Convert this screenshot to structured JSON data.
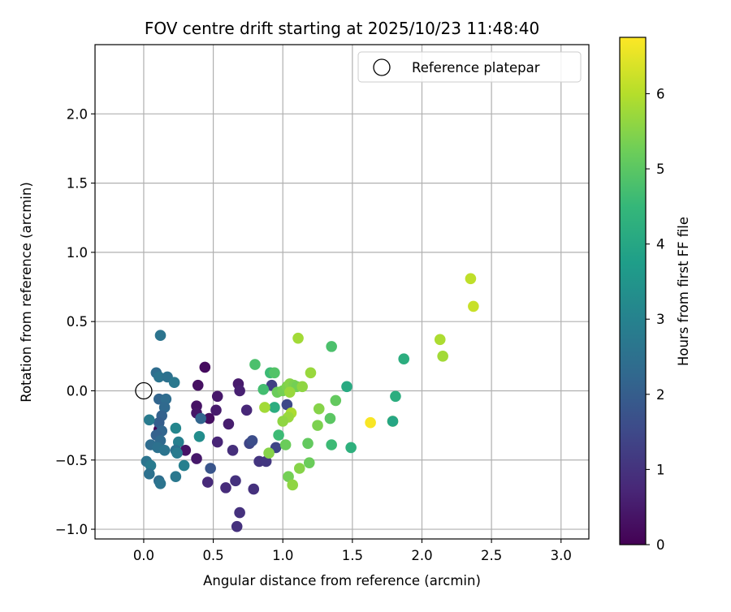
{
  "chart_data": {
    "type": "scatter",
    "title": "FOV centre drift starting at 2025/10/23 11:48:40",
    "xlabel": "Angular distance from reference (arcmin)",
    "ylabel": "Rotation from reference (arcmin)",
    "xlim": [
      -0.35,
      3.2
    ],
    "ylim": [
      -1.07,
      2.5
    ],
    "xticks": [
      0.0,
      0.5,
      1.0,
      1.5,
      2.0,
      2.5,
      3.0
    ],
    "xtick_labels": [
      "0.0",
      "0.5",
      "1.0",
      "1.5",
      "2.0",
      "2.5",
      "3.0"
    ],
    "yticks": [
      -1.0,
      -0.5,
      0.0,
      0.5,
      1.0,
      1.5,
      2.0
    ],
    "ytick_labels": [
      "−1.0",
      "−0.5",
      "0.0",
      "0.5",
      "1.0",
      "1.5",
      "2.0"
    ],
    "grid": true,
    "legend": {
      "position": "top-right",
      "label": "Reference platepar"
    },
    "reference_point": {
      "x": 0.0,
      "y": 0.0
    },
    "colorbar": {
      "label": "Hours from first FF file",
      "range": [
        0,
        6.75
      ],
      "ticks": [
        0,
        1,
        2,
        3,
        4,
        5,
        6
      ],
      "tick_labels": [
        "0",
        "1",
        "2",
        "3",
        "4",
        "5",
        "6"
      ],
      "colormap": [
        "#440154",
        "#482878",
        "#3e4989",
        "#31688e",
        "#26828e",
        "#1f9e89",
        "#35b779",
        "#6ece58",
        "#b5de2b",
        "#fde725"
      ]
    },
    "points": [
      {
        "x": 0.11,
        "y": -0.28,
        "t": 0.05
      },
      {
        "x": 0.44,
        "y": 0.17,
        "t": 0.2
      },
      {
        "x": 0.39,
        "y": 0.04,
        "t": 0.3
      },
      {
        "x": 0.47,
        "y": -0.2,
        "t": 0.25
      },
      {
        "x": 0.38,
        "y": -0.11,
        "t": 0.35
      },
      {
        "x": 0.38,
        "y": -0.16,
        "t": 0.4
      },
      {
        "x": 0.53,
        "y": -0.04,
        "t": 0.45
      },
      {
        "x": 0.52,
        "y": -0.14,
        "t": 0.5
      },
      {
        "x": 0.68,
        "y": 0.05,
        "t": 0.5
      },
      {
        "x": 0.69,
        "y": 0.0,
        "t": 0.6
      },
      {
        "x": 0.61,
        "y": -0.24,
        "t": 0.55
      },
      {
        "x": 0.38,
        "y": -0.49,
        "t": 0.45
      },
      {
        "x": 0.3,
        "y": -0.43,
        "t": 0.35
      },
      {
        "x": 0.53,
        "y": -0.37,
        "t": 0.7
      },
      {
        "x": 0.74,
        "y": -0.14,
        "t": 0.75
      },
      {
        "x": 0.64,
        "y": -0.43,
        "t": 0.9
      },
      {
        "x": 0.46,
        "y": -0.66,
        "t": 0.8
      },
      {
        "x": 0.59,
        "y": -0.7,
        "t": 0.85
      },
      {
        "x": 0.66,
        "y": -0.65,
        "t": 0.95
      },
      {
        "x": 0.79,
        "y": -0.71,
        "t": 0.95
      },
      {
        "x": 0.69,
        "y": -0.88,
        "t": 0.95
      },
      {
        "x": 0.67,
        "y": -0.98,
        "t": 0.95
      },
      {
        "x": 0.83,
        "y": -0.51,
        "t": 1.05
      },
      {
        "x": 0.88,
        "y": -0.51,
        "t": 1.1
      },
      {
        "x": 0.76,
        "y": -0.38,
        "t": 1.4
      },
      {
        "x": 0.78,
        "y": -0.36,
        "t": 1.6
      },
      {
        "x": 0.95,
        "y": -0.41,
        "t": 1.4
      },
      {
        "x": 0.92,
        "y": 0.04,
        "t": 1.3
      },
      {
        "x": 1.03,
        "y": -0.1,
        "t": 1.5
      },
      {
        "x": 0.48,
        "y": -0.56,
        "t": 1.8
      },
      {
        "x": 0.41,
        "y": -0.2,
        "t": 2.2
      },
      {
        "x": 0.12,
        "y": 0.4,
        "t": 2.6
      },
      {
        "x": 0.09,
        "y": 0.13,
        "t": 2.4
      },
      {
        "x": 0.11,
        "y": 0.1,
        "t": 2.6
      },
      {
        "x": 0.17,
        "y": 0.1,
        "t": 2.5
      },
      {
        "x": 0.22,
        "y": 0.06,
        "t": 2.7
      },
      {
        "x": 0.11,
        "y": -0.06,
        "t": 2.2
      },
      {
        "x": 0.16,
        "y": -0.06,
        "t": 2.4
      },
      {
        "x": 0.15,
        "y": -0.12,
        "t": 2.3
      },
      {
        "x": 0.13,
        "y": -0.18,
        "t": 2.1
      },
      {
        "x": 0.11,
        "y": -0.23,
        "t": 2.0
      },
      {
        "x": 0.04,
        "y": -0.21,
        "t": 2.8
      },
      {
        "x": 0.13,
        "y": -0.29,
        "t": 2.2
      },
      {
        "x": 0.09,
        "y": -0.32,
        "t": 2.1
      },
      {
        "x": 0.12,
        "y": -0.36,
        "t": 2.3
      },
      {
        "x": 0.05,
        "y": -0.39,
        "t": 2.4
      },
      {
        "x": 0.1,
        "y": -0.41,
        "t": 2.5
      },
      {
        "x": 0.15,
        "y": -0.43,
        "t": 2.6
      },
      {
        "x": 0.23,
        "y": -0.27,
        "t": 3.1
      },
      {
        "x": 0.25,
        "y": -0.37,
        "t": 2.9
      },
      {
        "x": 0.23,
        "y": -0.43,
        "t": 2.5
      },
      {
        "x": 0.24,
        "y": -0.45,
        "t": 2.8
      },
      {
        "x": 0.02,
        "y": -0.51,
        "t": 2.6
      },
      {
        "x": 0.05,
        "y": -0.54,
        "t": 2.8
      },
      {
        "x": 0.04,
        "y": -0.6,
        "t": 2.5
      },
      {
        "x": 0.11,
        "y": -0.65,
        "t": 2.4
      },
      {
        "x": 0.12,
        "y": -0.67,
        "t": 2.6
      },
      {
        "x": 0.23,
        "y": -0.62,
        "t": 2.7
      },
      {
        "x": 0.29,
        "y": -0.54,
        "t": 2.9
      },
      {
        "x": 0.4,
        "y": -0.33,
        "t": 3.3
      },
      {
        "x": 0.94,
        "y": -0.12,
        "t": 4.2
      },
      {
        "x": 0.97,
        "y": -0.32,
        "t": 4.6
      },
      {
        "x": 0.8,
        "y": 0.19,
        "t": 4.8
      },
      {
        "x": 0.86,
        "y": 0.01,
        "t": 4.7
      },
      {
        "x": 0.91,
        "y": 0.13,
        "t": 4.6
      },
      {
        "x": 0.94,
        "y": 0.13,
        "t": 4.9
      },
      {
        "x": 0.96,
        "y": -0.01,
        "t": 5.2
      },
      {
        "x": 1.0,
        "y": 0.0,
        "t": 5.3
      },
      {
        "x": 1.03,
        "y": 0.03,
        "t": 5.4
      },
      {
        "x": 1.05,
        "y": 0.05,
        "t": 5.5
      },
      {
        "x": 1.08,
        "y": 0.04,
        "t": 5.4
      },
      {
        "x": 1.1,
        "y": 0.03,
        "t": 5.3
      },
      {
        "x": 1.14,
        "y": 0.03,
        "t": 5.6
      },
      {
        "x": 1.05,
        "y": -0.01,
        "t": 5.7
      },
      {
        "x": 1.06,
        "y": -0.16,
        "t": 5.9
      },
      {
        "x": 1.04,
        "y": -0.19,
        "t": 5.7
      },
      {
        "x": 1.0,
        "y": -0.22,
        "t": 5.6
      },
      {
        "x": 0.87,
        "y": -0.12,
        "t": 5.8
      },
      {
        "x": 0.9,
        "y": -0.45,
        "t": 5.5
      },
      {
        "x": 1.02,
        "y": -0.39,
        "t": 5.2
      },
      {
        "x": 1.11,
        "y": 0.38,
        "t": 5.8
      },
      {
        "x": 1.2,
        "y": 0.13,
        "t": 5.7
      },
      {
        "x": 1.26,
        "y": -0.13,
        "t": 5.5
      },
      {
        "x": 1.25,
        "y": -0.25,
        "t": 5.4
      },
      {
        "x": 1.18,
        "y": -0.38,
        "t": 5.1
      },
      {
        "x": 1.19,
        "y": -0.52,
        "t": 5.2
      },
      {
        "x": 1.12,
        "y": -0.56,
        "t": 5.5
      },
      {
        "x": 1.04,
        "y": -0.62,
        "t": 5.3
      },
      {
        "x": 1.07,
        "y": -0.68,
        "t": 5.6
      },
      {
        "x": 1.34,
        "y": -0.2,
        "t": 5.0
      },
      {
        "x": 1.38,
        "y": -0.07,
        "t": 5.1
      },
      {
        "x": 1.35,
        "y": -0.39,
        "t": 4.6
      },
      {
        "x": 1.35,
        "y": 0.32,
        "t": 4.8
      },
      {
        "x": 1.46,
        "y": 0.03,
        "t": 4.1
      },
      {
        "x": 1.49,
        "y": -0.41,
        "t": 4.3
      },
      {
        "x": 1.63,
        "y": -0.23,
        "t": 6.7
      },
      {
        "x": 1.79,
        "y": -0.22,
        "t": 6.7
      },
      {
        "x": 1.79,
        "y": -0.22,
        "t": 4.0
      },
      {
        "x": 1.81,
        "y": -0.04,
        "t": 4.2
      },
      {
        "x": 1.87,
        "y": 0.23,
        "t": 4.2
      },
      {
        "x": 2.13,
        "y": 0.37,
        "t": 5.9
      },
      {
        "x": 2.15,
        "y": 0.25,
        "t": 5.8
      },
      {
        "x": 2.35,
        "y": 0.81,
        "t": 6.1
      },
      {
        "x": 2.37,
        "y": 0.61,
        "t": 6.2
      }
    ]
  }
}
